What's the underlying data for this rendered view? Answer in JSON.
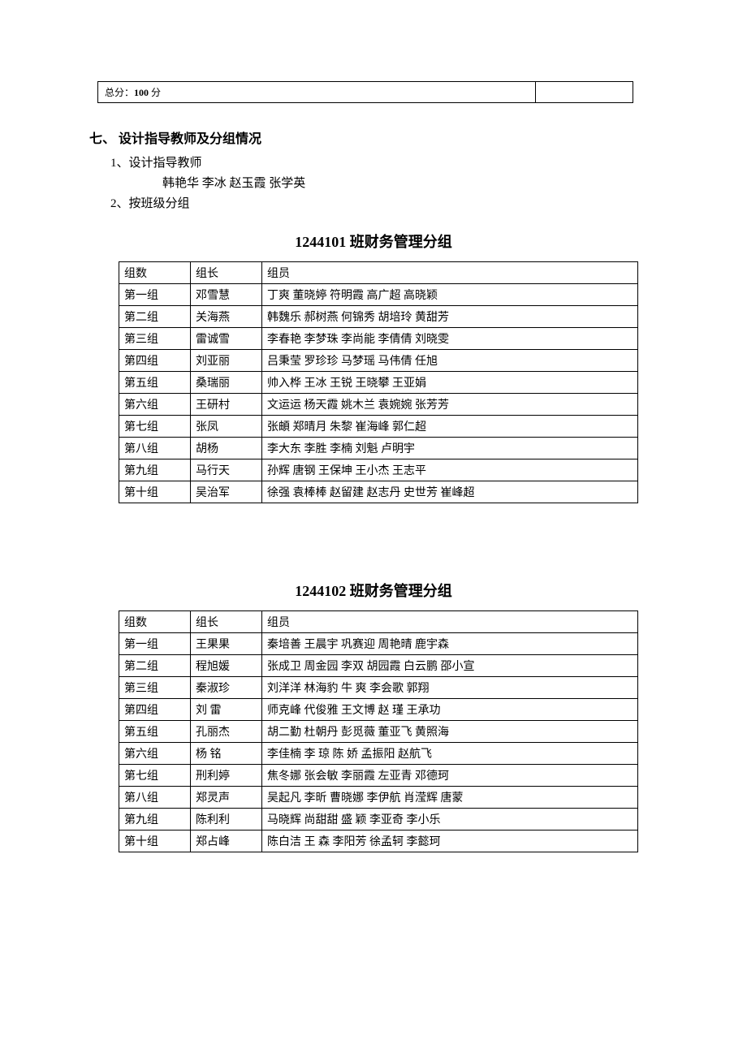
{
  "score_box": {
    "label": "总分：",
    "value": "100",
    "unit": " 分"
  },
  "section7": {
    "heading": "七、 设计指导教师及分组情况",
    "item1_label": "1、设计指导教师",
    "teachers": "韩艳华   李冰     赵玉霞     张学英",
    "item2_label": "2、按班级分组"
  },
  "table1": {
    "title": "1244101 班财务管理分组",
    "header": {
      "group": "组数",
      "leader": "组长",
      "members": "组员"
    },
    "rows": [
      {
        "group": "第一组",
        "leader": "邓雪慧",
        "members": "丁爽    董晓婷    符明霞    高广超    高晓颖"
      },
      {
        "group": "第二组",
        "leader": "关海燕",
        "members": "韩魏乐    郝树燕    何锦秀    胡培玲    黄甜芳"
      },
      {
        "group": "第三组",
        "leader": "雷诚雪",
        "members": "李春艳    李梦珠    李尚能    李倩倩    刘晓雯"
      },
      {
        "group": "第四组",
        "leader": "刘亚丽",
        "members": "吕秉莹    罗珍珍    马梦瑶    马伟倩    任旭"
      },
      {
        "group": "第五组",
        "leader": "桑瑞丽",
        "members": "帅入桦    王冰   王锐   王晓攀    王亚娟"
      },
      {
        "group": "第六组",
        "leader": "王研村",
        "members": "文运运    杨天霞    姚木兰   袁婉婉    张芳芳"
      },
      {
        "group": "第七组",
        "leader": "张凤",
        "members": "张頔    郑晴月    朱黎    崔海峰    郭仁超"
      },
      {
        "group": "第八组",
        "leader": "胡杨",
        "members": "李大东    李胜    李楠    刘魁   卢明宇"
      },
      {
        "group": "第九组",
        "leader": "马行天",
        "members": "孙辉    唐钢    王保坤    王小杰    王志平"
      },
      {
        "group": "第十组",
        "leader": "吴治军",
        "members": "徐强    袁棒棒    赵留建    赵志丹    史世芳    崔峰超"
      }
    ]
  },
  "table2": {
    "title": "1244102 班财务管理分组",
    "header": {
      "group": "组数",
      "leader": "组长",
      "members": "组员"
    },
    "rows": [
      {
        "group": "第一组",
        "leader": "王果果",
        "members": "秦培善    王晨宇    巩赛迎    周艳晴    鹿宇森"
      },
      {
        "group": "第二组",
        "leader": "程旭媛",
        "members": "张成卫    周金园    李双      胡园霞    白云鹏    邵小宣"
      },
      {
        "group": "第三组",
        "leader": "秦淑珍",
        "members": "刘洋洋    林海豹    牛  爽    李会歌    郭翔"
      },
      {
        "group": "第四组",
        "leader": "刘   雷",
        "members": "师克峰    代俊雅    王文博    赵   瑾    王承功"
      },
      {
        "group": "第五组",
        "leader": "孔丽杰",
        "members": "胡二勤    杜朝丹    彭觅薇    董亚飞    黄照海"
      },
      {
        "group": "第六组",
        "leader": "杨   铭",
        "members": "李佳楠    李  琼    陈 娇    孟振阳    赵航飞"
      },
      {
        "group": "第七组",
        "leader": "刑利婷",
        "members": "焦冬娜    张会敏    李丽霞    左亚青    邓德珂"
      },
      {
        "group": "第八组",
        "leader": "郑灵声",
        "members": "吴起凡    李昕    曹晓娜    李伊航    肖滢辉     唐蒙"
      },
      {
        "group": "第九组",
        "leader": "陈利利",
        "members": "马晓辉    尚甜甜    盛    颖    李亚奇    李小乐"
      },
      {
        "group": "第十组",
        "leader": "郑占峰",
        "members": "陈白洁    王  森    李阳芳    徐孟轲    李懿珂"
      }
    ]
  }
}
